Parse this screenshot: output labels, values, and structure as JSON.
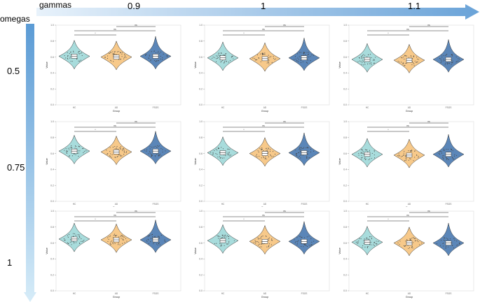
{
  "header": {
    "gammas_label": "gammas",
    "omegas_label": "omegas",
    "gamma_values": [
      "0.9",
      "1",
      "1.1"
    ],
    "omega_values": [
      "0.5",
      "0.75",
      "1"
    ]
  },
  "colors": {
    "arrow_start": "#d6e9f8",
    "arrow_end": "#5b9bd5",
    "group_colors": [
      "#a8dcdc",
      "#f7c98a",
      "#5b86b8"
    ],
    "bracket": "#222222"
  },
  "chart_data": {
    "type": "violin",
    "layout": "3x3 facet grid (rows: omegas, columns: gammas)",
    "xlabel": "Group",
    "ylabel": "Value",
    "categories": [
      "HC",
      "AD",
      "FSGS"
    ],
    "y_ticks": [
      "1.0",
      "0.8",
      "0.6",
      "0.4",
      "0.2",
      "0.0"
    ],
    "ylim": [
      0,
      1
    ],
    "comparisons": [
      {
        "pair": [
          "HC",
          "AD"
        ],
        "label": "*"
      },
      {
        "pair": [
          "HC",
          "FSGS"
        ],
        "label": "ns"
      },
      {
        "pair": [
          "AD",
          "FSGS"
        ],
        "label": "ns"
      }
    ],
    "panels": [
      {
        "omega": "0.5",
        "gamma": "0.9",
        "medians": [
          0.61,
          0.6,
          0.61
        ]
      },
      {
        "omega": "0.5",
        "gamma": "1",
        "medians": [
          0.59,
          0.58,
          0.59
        ]
      },
      {
        "omega": "0.5",
        "gamma": "1.1",
        "medians": [
          0.57,
          0.56,
          0.57
        ]
      },
      {
        "omega": "0.75",
        "gamma": "0.9",
        "medians": [
          0.63,
          0.62,
          0.63
        ]
      },
      {
        "omega": "0.75",
        "gamma": "1",
        "medians": [
          0.61,
          0.6,
          0.61
        ]
      },
      {
        "omega": "0.75",
        "gamma": "1.1",
        "medians": [
          0.59,
          0.58,
          0.59
        ]
      },
      {
        "omega": "1",
        "gamma": "0.9",
        "medians": [
          0.65,
          0.64,
          0.64
        ]
      },
      {
        "omega": "1",
        "gamma": "1",
        "medians": [
          0.63,
          0.62,
          0.62
        ]
      },
      {
        "omega": "1",
        "gamma": "1.1",
        "medians": [
          0.61,
          0.6,
          0.6
        ]
      }
    ]
  }
}
